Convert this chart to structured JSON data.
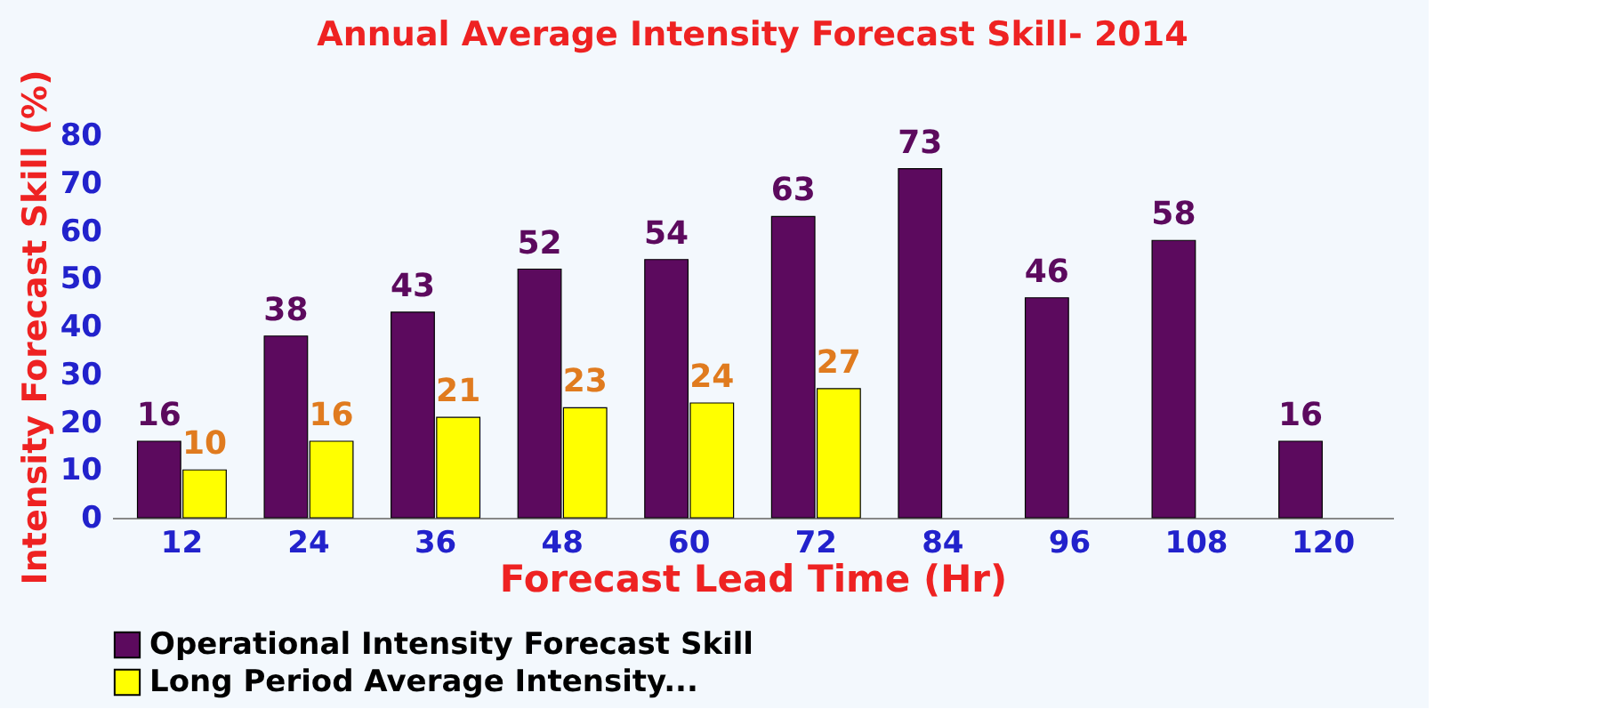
{
  "chart_data": {
    "type": "bar",
    "title": "Annual Average Intensity Forecast Skill- 2014",
    "xlabel": "Forecast Lead Time (Hr)",
    "ylabel": "Intensity  Forecast Skill (%)",
    "categories": [
      "12",
      "24",
      "36",
      "48",
      "60",
      "72",
      "84",
      "96",
      "108",
      "120"
    ],
    "series": [
      {
        "name": "Operational Intensity Forecast Skill",
        "color": "#5c0a5e",
        "values": [
          16,
          38,
          43,
          52,
          54,
          63,
          73,
          46,
          58,
          16
        ]
      },
      {
        "name": "Long Period Average Intensity...",
        "color": "#ffff00",
        "values": [
          10,
          16,
          21,
          23,
          24,
          27,
          null,
          null,
          null,
          null
        ]
      }
    ],
    "ylim": [
      0,
      80
    ],
    "yticks": [
      0,
      10,
      20,
      30,
      40,
      50,
      60,
      70,
      80
    ],
    "grid": false,
    "legend": "bottom",
    "data_labels": true
  }
}
